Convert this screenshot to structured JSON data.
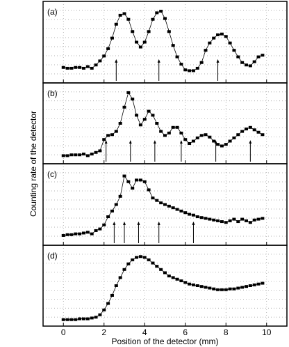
{
  "chart_data": [
    {
      "type": "line",
      "label": "(a)",
      "ylabel": "Counting rate of the detector",
      "xlim": [
        -1,
        11
      ],
      "ylim": [
        0,
        100
      ],
      "grid": true,
      "color": "#000000",
      "x": [
        0,
        0.2,
        0.4,
        0.6,
        0.8,
        1,
        1.2,
        1.4,
        1.6,
        1.8,
        2,
        2.2,
        2.4,
        2.6,
        2.8,
        3,
        3.2,
        3.4,
        3.6,
        3.8,
        4,
        4.2,
        4.4,
        4.6,
        4.8,
        5,
        5.2,
        5.4,
        5.6,
        5.8,
        6,
        6.2,
        6.4,
        6.6,
        6.8,
        7,
        7.2,
        7.4,
        7.6,
        7.8,
        8,
        8.2,
        8.4,
        8.6,
        8.8,
        9,
        9.2,
        9.4,
        9.6,
        9.8
      ],
      "values": [
        19,
        18,
        18,
        19,
        19,
        18,
        20,
        18,
        22,
        27,
        33,
        42,
        55,
        72,
        83,
        85,
        78,
        63,
        50,
        44,
        50,
        63,
        78,
        86,
        88,
        79,
        63,
        46,
        32,
        23,
        16,
        15,
        15,
        18,
        25,
        40,
        49,
        55,
        59,
        60,
        57,
        49,
        40,
        32,
        25,
        22,
        21,
        26,
        32,
        34
      ],
      "arrows": [
        2.6,
        4.7,
        7.6
      ]
    },
    {
      "type": "line",
      "label": "(b)",
      "xlim": [
        -1,
        11
      ],
      "ylim": [
        0,
        100
      ],
      "grid": true,
      "color": "#000000",
      "x": [
        0,
        0.2,
        0.4,
        0.6,
        0.8,
        1,
        1.2,
        1.4,
        1.6,
        1.8,
        2,
        2.2,
        2.4,
        2.6,
        2.8,
        3,
        3.2,
        3.4,
        3.6,
        3.8,
        4,
        4.2,
        4.4,
        4.6,
        4.8,
        5,
        5.2,
        5.4,
        5.6,
        5.8,
        6,
        6.2,
        6.4,
        6.6,
        6.8,
        7,
        7.2,
        7.4,
        7.6,
        7.8,
        8,
        8.2,
        8.4,
        8.6,
        8.8,
        9,
        9.2,
        9.4,
        9.6,
        9.8
      ],
      "values": [
        10,
        10,
        11,
        11,
        11,
        12,
        10,
        12,
        14,
        16,
        30,
        35,
        36,
        40,
        50,
        70,
        88,
        80,
        60,
        48,
        55,
        65,
        60,
        50,
        40,
        35,
        38,
        45,
        45,
        38,
        30,
        25,
        28,
        32,
        35,
        36,
        33,
        28,
        24,
        22,
        24,
        28,
        32,
        36,
        40,
        43,
        45,
        42,
        39,
        36
      ],
      "arrows": [
        2.1,
        3.3,
        4.5,
        5.8,
        7.5,
        9.2
      ]
    },
    {
      "type": "line",
      "label": "(c)",
      "xlim": [
        -1,
        11
      ],
      "ylim": [
        0,
        100
      ],
      "grid": true,
      "color": "#000000",
      "x": [
        0,
        0.2,
        0.4,
        0.6,
        0.8,
        1,
        1.2,
        1.4,
        1.6,
        1.8,
        2,
        2.2,
        2.4,
        2.6,
        2.8,
        3,
        3.2,
        3.4,
        3.6,
        3.8,
        4,
        4.2,
        4.4,
        4.6,
        4.8,
        5,
        5.2,
        5.4,
        5.6,
        5.8,
        6,
        6.2,
        6.4,
        6.6,
        6.8,
        7,
        7.2,
        7.4,
        7.6,
        7.8,
        8,
        8.2,
        8.4,
        8.6,
        8.8,
        9,
        9.2,
        9.4,
        9.6,
        9.8
      ],
      "values": [
        12,
        13,
        13,
        14,
        14,
        15,
        16,
        14,
        18,
        20,
        25,
        35,
        42,
        50,
        60,
        85,
        78,
        70,
        80,
        80,
        78,
        68,
        58,
        55,
        52,
        50,
        48,
        46,
        44,
        42,
        40,
        38,
        37,
        35,
        34,
        33,
        32,
        31,
        30,
        29,
        28,
        30,
        32,
        29,
        32,
        30,
        28,
        31,
        32,
        33
      ],
      "arrows": [
        2.5,
        3.0,
        3.7,
        4.7,
        6.4
      ]
    },
    {
      "type": "line",
      "label": "(d)",
      "xlabel": "Position of the detector (mm)",
      "xlim": [
        -1,
        11
      ],
      "ylim": [
        0,
        100
      ],
      "grid": true,
      "color": "#000000",
      "xticks": [
        0,
        2,
        4,
        6,
        8,
        10
      ],
      "x": [
        0,
        0.2,
        0.4,
        0.6,
        0.8,
        1,
        1.2,
        1.4,
        1.6,
        1.8,
        2,
        2.2,
        2.4,
        2.6,
        2.8,
        3,
        3.2,
        3.4,
        3.6,
        3.8,
        4,
        4.2,
        4.4,
        4.6,
        4.8,
        5,
        5.2,
        5.4,
        5.6,
        5.8,
        6,
        6.2,
        6.4,
        6.6,
        6.8,
        7,
        7.2,
        7.4,
        7.6,
        7.8,
        8,
        8.2,
        8.4,
        8.6,
        8.8,
        9,
        9.2,
        9.4,
        9.6,
        9.8
      ],
      "values": [
        8,
        8,
        8,
        8,
        9,
        9,
        9,
        10,
        11,
        14,
        20,
        28,
        38,
        50,
        60,
        70,
        77,
        82,
        85,
        86,
        85,
        82,
        78,
        74,
        70,
        66,
        62,
        60,
        58,
        56,
        54,
        52,
        51,
        50,
        49,
        48,
        47,
        46,
        45,
        45,
        45,
        46,
        46,
        47,
        48,
        49,
        50,
        51,
        52,
        53
      ]
    }
  ]
}
